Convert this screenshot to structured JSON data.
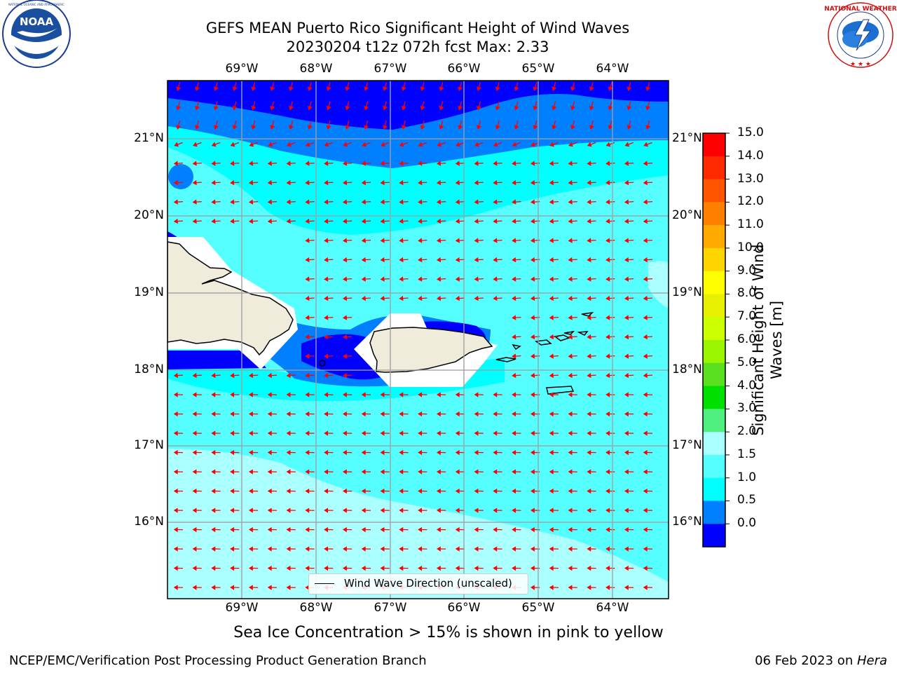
{
  "title": {
    "line1": "GEFS MEAN Puerto Rico Significant Height of Wind Waves",
    "line2": "20230204 t12z 072h fcst   Max: 2.33"
  },
  "logos": {
    "left": {
      "icon": "noaa-logo",
      "text": "NOAA",
      "ring_text": "NATIONAL OCEANIC AND ATMOSPHERIC ADMINISTRATION · U.S. DEPARTMENT OF COMMERCE"
    },
    "right": {
      "icon": "nws-logo",
      "ring_text": "NATIONAL WEATHER SERVICE"
    }
  },
  "map": {
    "lon_labels": [
      "69°W",
      "68°W",
      "67°W",
      "66°W",
      "65°W",
      "64°W"
    ],
    "lat_labels": [
      "21°N",
      "20°N",
      "19°N",
      "18°N",
      "17°N",
      "16°N"
    ],
    "legend": "Wind Wave Direction (unscaled)",
    "arrow_color": "#ff0000",
    "land_color": "#efecdc"
  },
  "colorbar": {
    "label_line1": "Significant Height of Wind",
    "label_line2": "Waves [m]",
    "ticks": [
      "15.0",
      "14.0",
      "13.0",
      "12.0",
      "11.0",
      "10.0",
      "9.0",
      "8.0",
      "7.0",
      "6.0",
      "5.0",
      "4.0",
      "3.0",
      "2.0",
      "1.5",
      "1.0",
      "0.5",
      "0.0"
    ],
    "colors_top_to_bottom": [
      "#ff0000",
      "#ff2a00",
      "#ff5500",
      "#ff8000",
      "#ffaa00",
      "#ffd500",
      "#ffff00",
      "#e6f000",
      "#ccff00",
      "#99f500",
      "#5ae020",
      "#00e000",
      "#50f080",
      "#aaffff",
      "#55ffff",
      "#00ffff",
      "#0080ff",
      "#0000ff"
    ]
  },
  "note": "Sea Ice Concentration > 15% is shown in pink to yellow",
  "footer": {
    "left": "NCEP/EMC/Verification Post Processing Product Generation Branch",
    "date": "06 Feb 2023 on ",
    "machine": "Hera"
  }
}
